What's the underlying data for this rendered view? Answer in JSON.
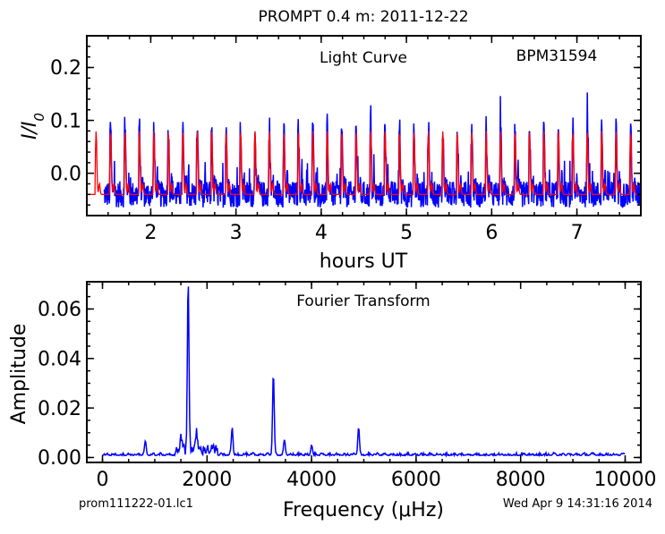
{
  "figure": {
    "title": "PROMPT 0.4 m:  2011-12-22",
    "footer_left": "prom111222-01.lc1",
    "footer_right": "Wed Apr  9 14:31:16 2014"
  },
  "chart_data": [
    {
      "type": "line",
      "panel": "light-curve",
      "title": "Light Curve",
      "annotation": "BPM31594",
      "xlabel": "hours UT",
      "ylabel": "I/I0",
      "xlim": [
        1.25,
        7.75
      ],
      "ylim": [
        -0.08,
        0.26
      ],
      "xticks": [
        2,
        3,
        4,
        5,
        6,
        7
      ],
      "xtick_labels": [
        "2",
        "3",
        "4",
        "5",
        "6",
        "7"
      ],
      "yticks": [
        0.0,
        0.1,
        0.2
      ],
      "ytick_labels": [
        "0.0",
        "0.1",
        "0.2"
      ],
      "grid": false,
      "colors": {
        "data": "#0000ff",
        "model": "#ff0000"
      },
      "series": [
        {
          "kind": "observed",
          "color": "#0000ff",
          "x_start": 1.45,
          "x_end": 7.75,
          "pulse_period_hours": 0.1695,
          "peak_amplitude": 0.13,
          "baseline": -0.04
        },
        {
          "kind": "fit",
          "color": "#ff0000",
          "x_start": 1.25,
          "x_end": 7.75,
          "pulse_period_hours": 0.1695,
          "peak_amplitude": 0.12,
          "baseline": -0.04
        }
      ]
    },
    {
      "type": "line",
      "panel": "fourier-transform",
      "title": "Fourier Transform",
      "xlabel": "Frequency (μHz)",
      "ylabel": "Amplitude",
      "xlim": [
        -300,
        10300
      ],
      "ylim": [
        -0.002,
        0.071
      ],
      "xticks": [
        0,
        2000,
        4000,
        6000,
        8000,
        10000
      ],
      "xtick_labels": [
        "0",
        "2000",
        "4000",
        "6000",
        "8000",
        "10000"
      ],
      "yticks": [
        0.0,
        0.02,
        0.04,
        0.06
      ],
      "ytick_labels": [
        "0.00",
        "0.02",
        "0.04",
        "0.06"
      ],
      "grid": false,
      "color": "#0000ff",
      "x_range": [
        0,
        10000
      ],
      "peaks": [
        {
          "x": 1640,
          "y": 0.068
        },
        {
          "x": 3270,
          "y": 0.033
        },
        {
          "x": 4900,
          "y": 0.011
        },
        {
          "x": 2480,
          "y": 0.011
        },
        {
          "x": 1500,
          "y": 0.007
        },
        {
          "x": 1800,
          "y": 0.008
        },
        {
          "x": 820,
          "y": 0.005
        },
        {
          "x": 3480,
          "y": 0.006
        },
        {
          "x": 4000,
          "y": 0.004
        }
      ],
      "noise_level": 0.002
    }
  ]
}
